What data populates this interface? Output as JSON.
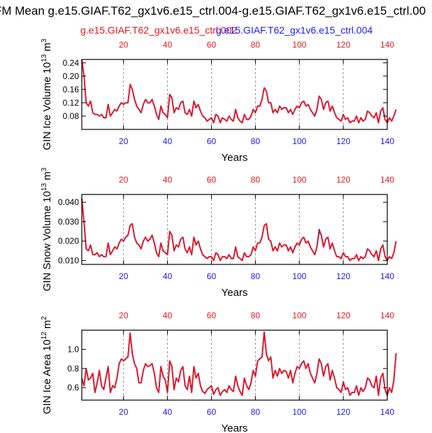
{
  "title": "FM Mean g.e15.GIAF.T62_gx1v6.e15_ctrl.004-g.e15.GIAF.T62_gx1v6.e15_ctrl.00",
  "legend": [
    {
      "label": "g.e15.GIAF.T62_gx1v6.e15_ctrl.002",
      "color": "#e8141e"
    },
    {
      "label": "g.e15.GIAF.T62_gx1v6.e15_ctrl.004",
      "color": "#1a1aff"
    }
  ],
  "colors": {
    "series_a": "#e8141e",
    "series_b": "#3030e0",
    "top_axis_ticks": "#e8141e",
    "bottom_axis_ticks": "#1a1ae6"
  },
  "chart_data": [
    {
      "type": "line",
      "name": "ice-volume",
      "ylabel": "GIN Ice Volume 10",
      "ylabel_exp": "13",
      "ylabel_unit": " m",
      "ylabel_unit_exp": "3",
      "xlabel": "Years",
      "xlim": [
        1,
        140
      ],
      "ylim": [
        0.04,
        0.25
      ],
      "yticks": [
        0.08,
        0.12,
        0.16,
        0.2,
        0.24
      ],
      "ytick_labels": [
        "0.08",
        "0.12",
        "0.16",
        "0.20",
        "0.24"
      ],
      "xticks": [
        20,
        40,
        60,
        80,
        100,
        120,
        140
      ],
      "xtick_labels": [
        "20",
        "40",
        "60",
        "80",
        "100",
        "120",
        "140"
      ],
      "x_start": 1,
      "series": [
        {
          "name": "g.e15.GIAF.T62_gx1v6.e15_ctrl.002",
          "values": [
            0.25,
            0.2,
            0.12,
            0.11,
            0.125,
            0.09,
            0.085,
            0.085,
            0.08,
            0.085,
            0.075,
            0.075,
            0.115,
            0.08,
            0.09,
            0.1,
            0.095,
            0.11,
            0.12,
            0.115,
            0.12,
            0.12,
            0.175,
            0.16,
            0.13,
            0.11,
            0.1,
            0.09,
            0.115,
            0.13,
            0.12,
            0.12,
            0.13,
            0.11,
            0.085,
            0.07,
            0.11,
            0.09,
            0.085,
            0.075,
            0.145,
            0.135,
            0.09,
            0.105,
            0.1,
            0.12,
            0.125,
            0.09,
            0.085,
            0.1,
            0.08,
            0.125,
            0.105,
            0.115,
            0.095,
            0.08,
            0.075,
            0.065,
            0.07,
            0.075,
            0.06,
            0.085,
            0.08,
            0.06,
            0.075,
            0.07,
            0.065,
            0.08,
            0.07,
            0.065,
            0.1,
            0.075,
            0.065,
            0.06,
            0.085,
            0.07,
            0.07,
            0.08,
            0.1,
            0.09,
            0.11,
            0.11,
            0.13,
            0.165,
            0.155,
            0.12,
            0.12,
            0.09,
            0.1,
            0.09,
            0.11,
            0.1,
            0.105,
            0.105,
            0.09,
            0.1,
            0.085,
            0.1,
            0.11,
            0.105,
            0.12,
            0.125,
            0.11,
            0.115,
            0.1,
            0.09,
            0.08,
            0.1,
            0.14,
            0.13,
            0.1,
            0.12,
            0.125,
            0.095,
            0.11,
            0.09,
            0.075,
            0.07,
            0.065,
            0.085,
            0.07,
            0.075,
            0.06,
            0.065,
            0.065,
            0.08,
            0.06,
            0.075,
            0.065,
            0.07,
            0.095,
            0.09,
            0.08,
            0.075,
            0.09,
            0.06,
            0.095,
            0.105,
            0.07,
            0.06,
            0.075,
            0.065,
            0.08,
            0.1
          ],
          "color": "#e8141e"
        },
        {
          "name": "g.e15.GIAF.T62_gx1v6.e15_ctrl.004",
          "values": [
            0.25,
            0.2,
            0.12,
            0.11,
            0.125,
            0.09,
            0.085,
            0.085,
            0.08,
            0.085,
            0.075,
            0.075,
            0.115,
            0.08,
            0.09,
            0.1,
            0.095,
            0.11,
            0.12,
            0.115,
            0.12,
            0.12,
            0.175,
            0.16,
            0.13,
            0.11,
            0.1,
            0.09,
            0.115,
            0.13,
            0.12,
            0.12,
            0.13,
            0.11,
            0.085,
            0.07,
            0.11,
            0.09,
            0.085,
            0.075,
            0.145,
            0.135,
            0.09,
            0.105,
            0.1,
            0.12,
            0.125,
            0.09,
            0.085,
            0.1,
            0.08,
            0.125,
            0.105,
            0.115,
            0.095,
            0.08,
            0.075,
            0.065,
            0.07,
            0.075,
            0.06,
            0.085,
            0.08,
            0.06,
            0.075,
            0.07,
            0.065,
            0.08,
            0.07,
            0.065,
            0.1,
            0.075,
            0.065,
            0.06,
            0.085,
            0.07,
            0.07,
            0.08,
            0.1,
            0.09,
            0.11,
            0.11,
            0.13,
            0.165,
            0.155,
            0.12,
            0.12,
            0.09,
            0.1,
            0.09,
            0.11,
            0.1,
            0.105,
            0.105,
            0.09,
            0.1,
            0.085,
            0.1,
            0.11,
            0.105,
            0.12,
            0.125,
            0.11,
            0.115,
            0.1,
            0.09,
            0.08,
            0.1,
            0.14,
            0.13,
            0.1,
            0.12,
            0.125,
            0.095,
            0.11,
            0.09,
            0.075,
            0.07,
            0.065,
            0.085,
            0.07,
            0.075,
            0.06,
            0.065,
            0.065,
            0.08,
            0.06,
            0.075,
            0.065,
            0.07,
            0.095,
            0.09,
            0.08,
            0.075,
            0.09,
            0.06,
            0.095,
            0.105,
            0.07,
            0.06,
            0.075,
            0.065,
            0.08,
            0.1
          ],
          "color": "#3030e0"
        }
      ]
    },
    {
      "type": "line",
      "name": "snow-volume",
      "ylabel": "GIN Snow Volume 10",
      "ylabel_exp": "13",
      "ylabel_unit": " m",
      "ylabel_unit_exp": "3",
      "xlabel": "Years",
      "xlim": [
        1,
        140
      ],
      "ylim": [
        0.008,
        0.044
      ],
      "yticks": [
        0.01,
        0.02,
        0.03,
        0.04
      ],
      "ytick_labels": [
        "0.010",
        "0.020",
        "0.030",
        "0.040"
      ],
      "xticks": [
        20,
        40,
        60,
        80,
        100,
        120,
        140
      ],
      "xtick_labels": [
        "20",
        "40",
        "60",
        "80",
        "100",
        "120",
        "140"
      ],
      "x_start": 1,
      "series": [
        {
          "name": "g.e15.GIAF.T62_gx1v6.e15_ctrl.002",
          "values": [
            0.042,
            0.03,
            0.016,
            0.015,
            0.018,
            0.013,
            0.013,
            0.014,
            0.012,
            0.013,
            0.012,
            0.012,
            0.019,
            0.013,
            0.015,
            0.017,
            0.016,
            0.019,
            0.021,
            0.02,
            0.022,
            0.023,
            0.028,
            0.029,
            0.022,
            0.019,
            0.018,
            0.016,
            0.02,
            0.022,
            0.02,
            0.021,
            0.023,
            0.019,
            0.014,
            0.012,
            0.019,
            0.015,
            0.014,
            0.013,
            0.025,
            0.023,
            0.015,
            0.018,
            0.017,
            0.021,
            0.022,
            0.016,
            0.014,
            0.017,
            0.013,
            0.022,
            0.018,
            0.02,
            0.016,
            0.013,
            0.012,
            0.011,
            0.012,
            0.012,
            0.01,
            0.014,
            0.013,
            0.01,
            0.012,
            0.012,
            0.011,
            0.013,
            0.011,
            0.011,
            0.017,
            0.012,
            0.011,
            0.01,
            0.014,
            0.012,
            0.012,
            0.013,
            0.017,
            0.015,
            0.019,
            0.019,
            0.022,
            0.028,
            0.029,
            0.021,
            0.02,
            0.015,
            0.017,
            0.015,
            0.019,
            0.017,
            0.018,
            0.018,
            0.015,
            0.017,
            0.014,
            0.017,
            0.019,
            0.018,
            0.021,
            0.022,
            0.019,
            0.02,
            0.017,
            0.015,
            0.013,
            0.017,
            0.025,
            0.023,
            0.017,
            0.021,
            0.022,
            0.016,
            0.019,
            0.015,
            0.012,
            0.012,
            0.011,
            0.014,
            0.012,
            0.012,
            0.01,
            0.011,
            0.011,
            0.013,
            0.01,
            0.012,
            0.011,
            0.012,
            0.016,
            0.015,
            0.013,
            0.012,
            0.015,
            0.01,
            0.016,
            0.018,
            0.012,
            0.01,
            0.012,
            0.011,
            0.014,
            0.02
          ],
          "color": "#e8141e"
        },
        {
          "name": "g.e15.GIAF.T62_gx1v6.e15_ctrl.004",
          "values": [
            0.042,
            0.03,
            0.016,
            0.015,
            0.018,
            0.013,
            0.013,
            0.014,
            0.012,
            0.013,
            0.012,
            0.012,
            0.019,
            0.013,
            0.015,
            0.017,
            0.016,
            0.019,
            0.021,
            0.02,
            0.022,
            0.023,
            0.028,
            0.029,
            0.022,
            0.019,
            0.018,
            0.016,
            0.02,
            0.022,
            0.02,
            0.021,
            0.023,
            0.019,
            0.014,
            0.012,
            0.019,
            0.015,
            0.014,
            0.013,
            0.025,
            0.023,
            0.015,
            0.018,
            0.017,
            0.021,
            0.022,
            0.016,
            0.014,
            0.017,
            0.013,
            0.022,
            0.018,
            0.02,
            0.016,
            0.013,
            0.012,
            0.011,
            0.012,
            0.012,
            0.01,
            0.014,
            0.013,
            0.01,
            0.012,
            0.012,
            0.011,
            0.013,
            0.011,
            0.011,
            0.017,
            0.012,
            0.011,
            0.01,
            0.014,
            0.012,
            0.012,
            0.013,
            0.017,
            0.015,
            0.019,
            0.019,
            0.022,
            0.028,
            0.029,
            0.021,
            0.02,
            0.015,
            0.017,
            0.015,
            0.019,
            0.017,
            0.018,
            0.018,
            0.015,
            0.017,
            0.014,
            0.017,
            0.019,
            0.018,
            0.021,
            0.022,
            0.019,
            0.02,
            0.017,
            0.015,
            0.013,
            0.017,
            0.026,
            0.023,
            0.017,
            0.021,
            0.022,
            0.016,
            0.019,
            0.015,
            0.012,
            0.012,
            0.011,
            0.014,
            0.012,
            0.012,
            0.01,
            0.011,
            0.011,
            0.013,
            0.01,
            0.012,
            0.011,
            0.012,
            0.016,
            0.015,
            0.013,
            0.012,
            0.015,
            0.01,
            0.016,
            0.018,
            0.012,
            0.01,
            0.012,
            0.011,
            0.014,
            0.02
          ],
          "color": "#3030e0"
        }
      ]
    },
    {
      "type": "line",
      "name": "ice-area",
      "ylabel": "GIN Ice Area 10",
      "ylabel_exp": "12",
      "ylabel_unit": " m",
      "ylabel_unit_exp": "2",
      "xlabel": "Years",
      "xlim": [
        1,
        140
      ],
      "ylim": [
        0.47,
        1.2
      ],
      "yticks": [
        0.6,
        0.8,
        1.0
      ],
      "ytick_labels": [
        "0.6",
        "0.8",
        "1.0"
      ],
      "xticks": [
        20,
        40,
        60,
        80,
        100,
        120,
        140
      ],
      "xtick_labels": [
        "20",
        "40",
        "60",
        "80",
        "100",
        "120",
        "140"
      ],
      "x_start": 1,
      "series": [
        {
          "name": "g.e15.GIAF.T62_gx1v6.e15_ctrl.002",
          "values": [
            0.7,
            0.62,
            0.8,
            0.68,
            0.7,
            0.75,
            0.55,
            0.65,
            0.78,
            0.62,
            0.58,
            0.7,
            0.82,
            0.55,
            0.62,
            0.6,
            0.7,
            0.85,
            0.9,
            0.88,
            0.9,
            0.92,
            1.17,
            0.95,
            0.85,
            0.8,
            0.65,
            0.65,
            0.78,
            0.85,
            0.82,
            0.83,
            0.85,
            0.75,
            0.6,
            0.55,
            0.82,
            0.72,
            0.68,
            0.55,
            0.88,
            0.82,
            0.58,
            0.7,
            0.66,
            0.78,
            0.82,
            0.62,
            0.58,
            0.72,
            0.55,
            0.82,
            0.7,
            0.75,
            0.62,
            0.56,
            0.54,
            0.58,
            0.6,
            0.62,
            0.53,
            0.58,
            0.6,
            0.52,
            0.56,
            0.58,
            0.55,
            0.62,
            0.58,
            0.56,
            0.72,
            0.62,
            0.56,
            0.52,
            0.7,
            0.62,
            0.58,
            0.65,
            0.78,
            0.72,
            0.88,
            0.9,
            0.92,
            1.18,
            0.95,
            0.88,
            0.92,
            0.7,
            0.78,
            0.72,
            0.8,
            0.75,
            0.78,
            0.77,
            0.7,
            0.78,
            0.65,
            0.75,
            0.82,
            0.8,
            0.85,
            0.88,
            0.8,
            0.85,
            0.75,
            0.7,
            0.65,
            0.75,
            0.9,
            0.85,
            0.72,
            0.82,
            0.85,
            0.68,
            0.78,
            0.7,
            0.6,
            0.58,
            0.55,
            0.66,
            0.58,
            0.6,
            0.52,
            0.55,
            0.55,
            0.62,
            0.52,
            0.6,
            0.56,
            0.6,
            0.7,
            0.68,
            0.62,
            0.6,
            0.72,
            0.52,
            0.7,
            0.75,
            0.58,
            0.52,
            0.6,
            0.55,
            0.68,
            0.95
          ],
          "color": "#e8141e"
        },
        {
          "name": "g.e15.GIAF.T62_gx1v6.e15_ctrl.004",
          "values": [
            0.7,
            0.62,
            0.8,
            0.68,
            0.7,
            0.75,
            0.55,
            0.65,
            0.78,
            0.62,
            0.58,
            0.7,
            0.82,
            0.55,
            0.62,
            0.6,
            0.7,
            0.85,
            0.9,
            0.88,
            0.9,
            0.92,
            1.17,
            0.95,
            0.85,
            0.8,
            0.65,
            0.65,
            0.78,
            0.85,
            0.82,
            0.83,
            0.85,
            0.75,
            0.6,
            0.55,
            0.82,
            0.72,
            0.68,
            0.55,
            0.88,
            0.82,
            0.58,
            0.7,
            0.66,
            0.78,
            0.82,
            0.62,
            0.58,
            0.72,
            0.55,
            0.82,
            0.7,
            0.75,
            0.62,
            0.56,
            0.54,
            0.58,
            0.6,
            0.62,
            0.53,
            0.58,
            0.6,
            0.52,
            0.56,
            0.58,
            0.55,
            0.62,
            0.58,
            0.56,
            0.72,
            0.62,
            0.56,
            0.52,
            0.7,
            0.62,
            0.58,
            0.65,
            0.78,
            0.72,
            0.88,
            0.9,
            0.92,
            1.18,
            0.95,
            0.88,
            0.92,
            0.7,
            0.78,
            0.72,
            0.8,
            0.75,
            0.78,
            0.77,
            0.7,
            0.78,
            0.65,
            0.75,
            0.82,
            0.8,
            0.85,
            0.88,
            0.8,
            0.85,
            0.75,
            0.7,
            0.65,
            0.75,
            0.9,
            0.85,
            0.72,
            0.82,
            0.85,
            0.68,
            0.78,
            0.7,
            0.6,
            0.58,
            0.55,
            0.66,
            0.58,
            0.6,
            0.52,
            0.55,
            0.55,
            0.62,
            0.52,
            0.6,
            0.56,
            0.6,
            0.7,
            0.68,
            0.62,
            0.6,
            0.72,
            0.52,
            0.7,
            0.75,
            0.58,
            0.52,
            0.6,
            0.55,
            0.68,
            0.96
          ],
          "color": "#3030e0"
        }
      ]
    }
  ]
}
